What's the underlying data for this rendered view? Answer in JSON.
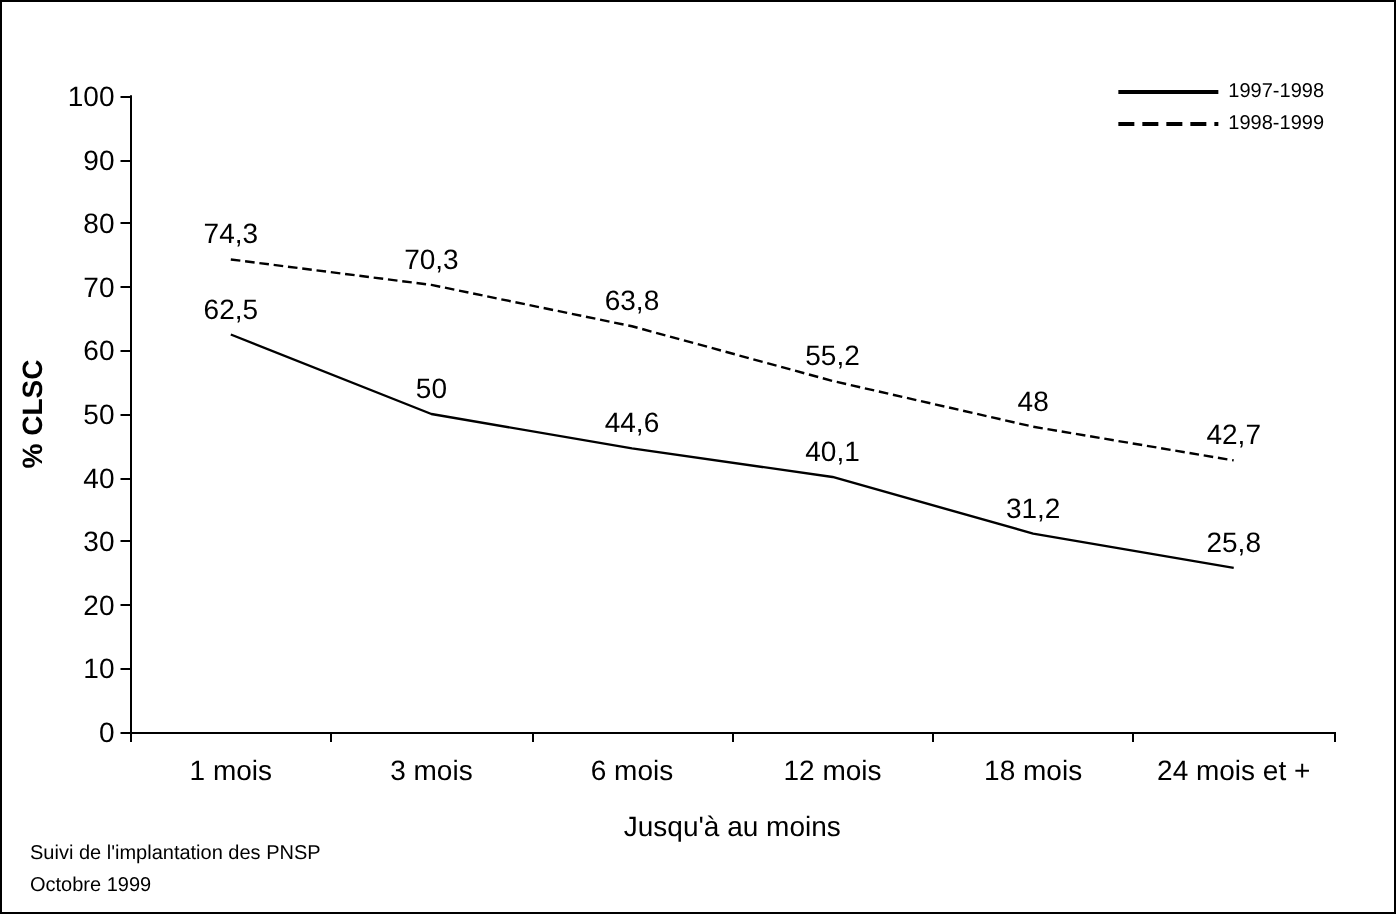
{
  "chart_data": {
    "type": "line",
    "ylabel": "% CLSC",
    "xlabel": "Jusqu'à au moins",
    "categories": [
      "1 mois",
      "3 mois",
      "6 mois",
      "12 mois",
      "18 mois",
      "24 mois et +"
    ],
    "series": [
      {
        "name": "1997-1998",
        "color": "#000000",
        "line_style": "solid",
        "values": [
          62.5,
          50,
          44.6,
          40.1,
          31.2,
          25.8
        ],
        "value_labels": [
          "62,5",
          "50",
          "44,6",
          "40,1",
          "31,2",
          "25,8"
        ]
      },
      {
        "name": "1998-1999",
        "color": "#000000",
        "line_style": "dashed",
        "values": [
          74.3,
          70.3,
          63.8,
          55.2,
          48,
          42.7
        ],
        "value_labels": [
          "74,3",
          "70,3",
          "63,8",
          "55,2",
          "48",
          "42,7"
        ]
      }
    ],
    "ylim": [
      0,
      100
    ],
    "yticks": [
      0,
      10,
      20,
      30,
      40,
      50,
      60,
      70,
      80,
      90,
      100
    ],
    "grid": false,
    "legend": "top right",
    "marker": "none",
    "annotations": [
      "Suivi de l'implantation des PNSP",
      "Octobre 1999"
    ]
  }
}
